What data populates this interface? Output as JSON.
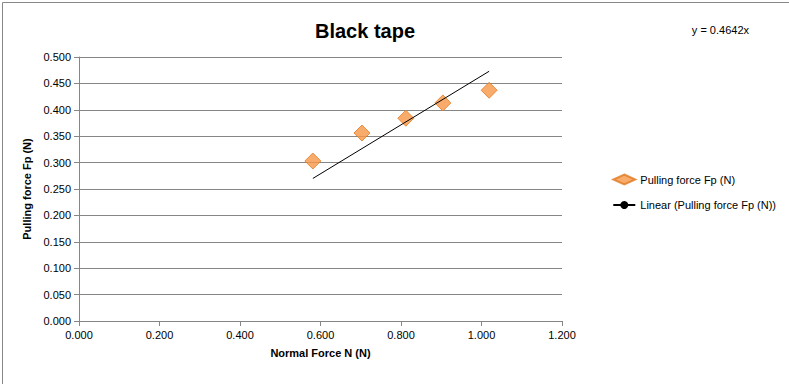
{
  "chart_data": {
    "type": "scatter",
    "title": "Black tape",
    "x_label": "Normal Force N (N)",
    "y_label": "Pulling force Fp (N)",
    "annotations": [
      "y = 0.4642x"
    ],
    "series": [
      {
        "name": "Pulling force Fp (N)",
        "type": "scatter",
        "marker": "diamond",
        "color": "#f79646",
        "x": [
          0.581,
          0.703,
          0.812,
          0.904,
          1.019
        ],
        "values": [
          0.303,
          0.356,
          0.384,
          0.413,
          0.437
        ]
      },
      {
        "name": "Linear (Pulling force Fp (N))",
        "type": "line",
        "line_style": "solid",
        "color": "#000000",
        "x": [
          0.581,
          1.019
        ],
        "values": [
          0.27,
          0.473
        ]
      }
    ],
    "xlim": [
      0,
      1.2
    ],
    "xticks": [
      {
        "value": 0,
        "label": "0.000"
      },
      {
        "value": 0.2,
        "label": "0.200"
      },
      {
        "value": 0.4,
        "label": "0.400"
      },
      {
        "value": 0.6,
        "label": "0.600"
      },
      {
        "value": 0.8,
        "label": "0.800"
      },
      {
        "value": 1.0,
        "label": "1.000"
      },
      {
        "value": 1.2,
        "label": "1.200"
      }
    ],
    "ylim": [
      0,
      0.5
    ],
    "yticks": [
      {
        "value": 0,
        "label": "0.000"
      },
      {
        "value": 0.05,
        "label": "0.050"
      },
      {
        "value": 0.1,
        "label": "0.100"
      },
      {
        "value": 0.15,
        "label": "0.150"
      },
      {
        "value": 0.2,
        "label": "0.200"
      },
      {
        "value": 0.25,
        "label": "0.250"
      },
      {
        "value": 0.3,
        "label": "0.300"
      },
      {
        "value": 0.35,
        "label": "0.350"
      },
      {
        "value": 0.4,
        "label": "0.400"
      },
      {
        "value": 0.45,
        "label": "0.450"
      },
      {
        "value": 0.5,
        "label": "0.500"
      }
    ],
    "grid": true,
    "legend": "right"
  }
}
